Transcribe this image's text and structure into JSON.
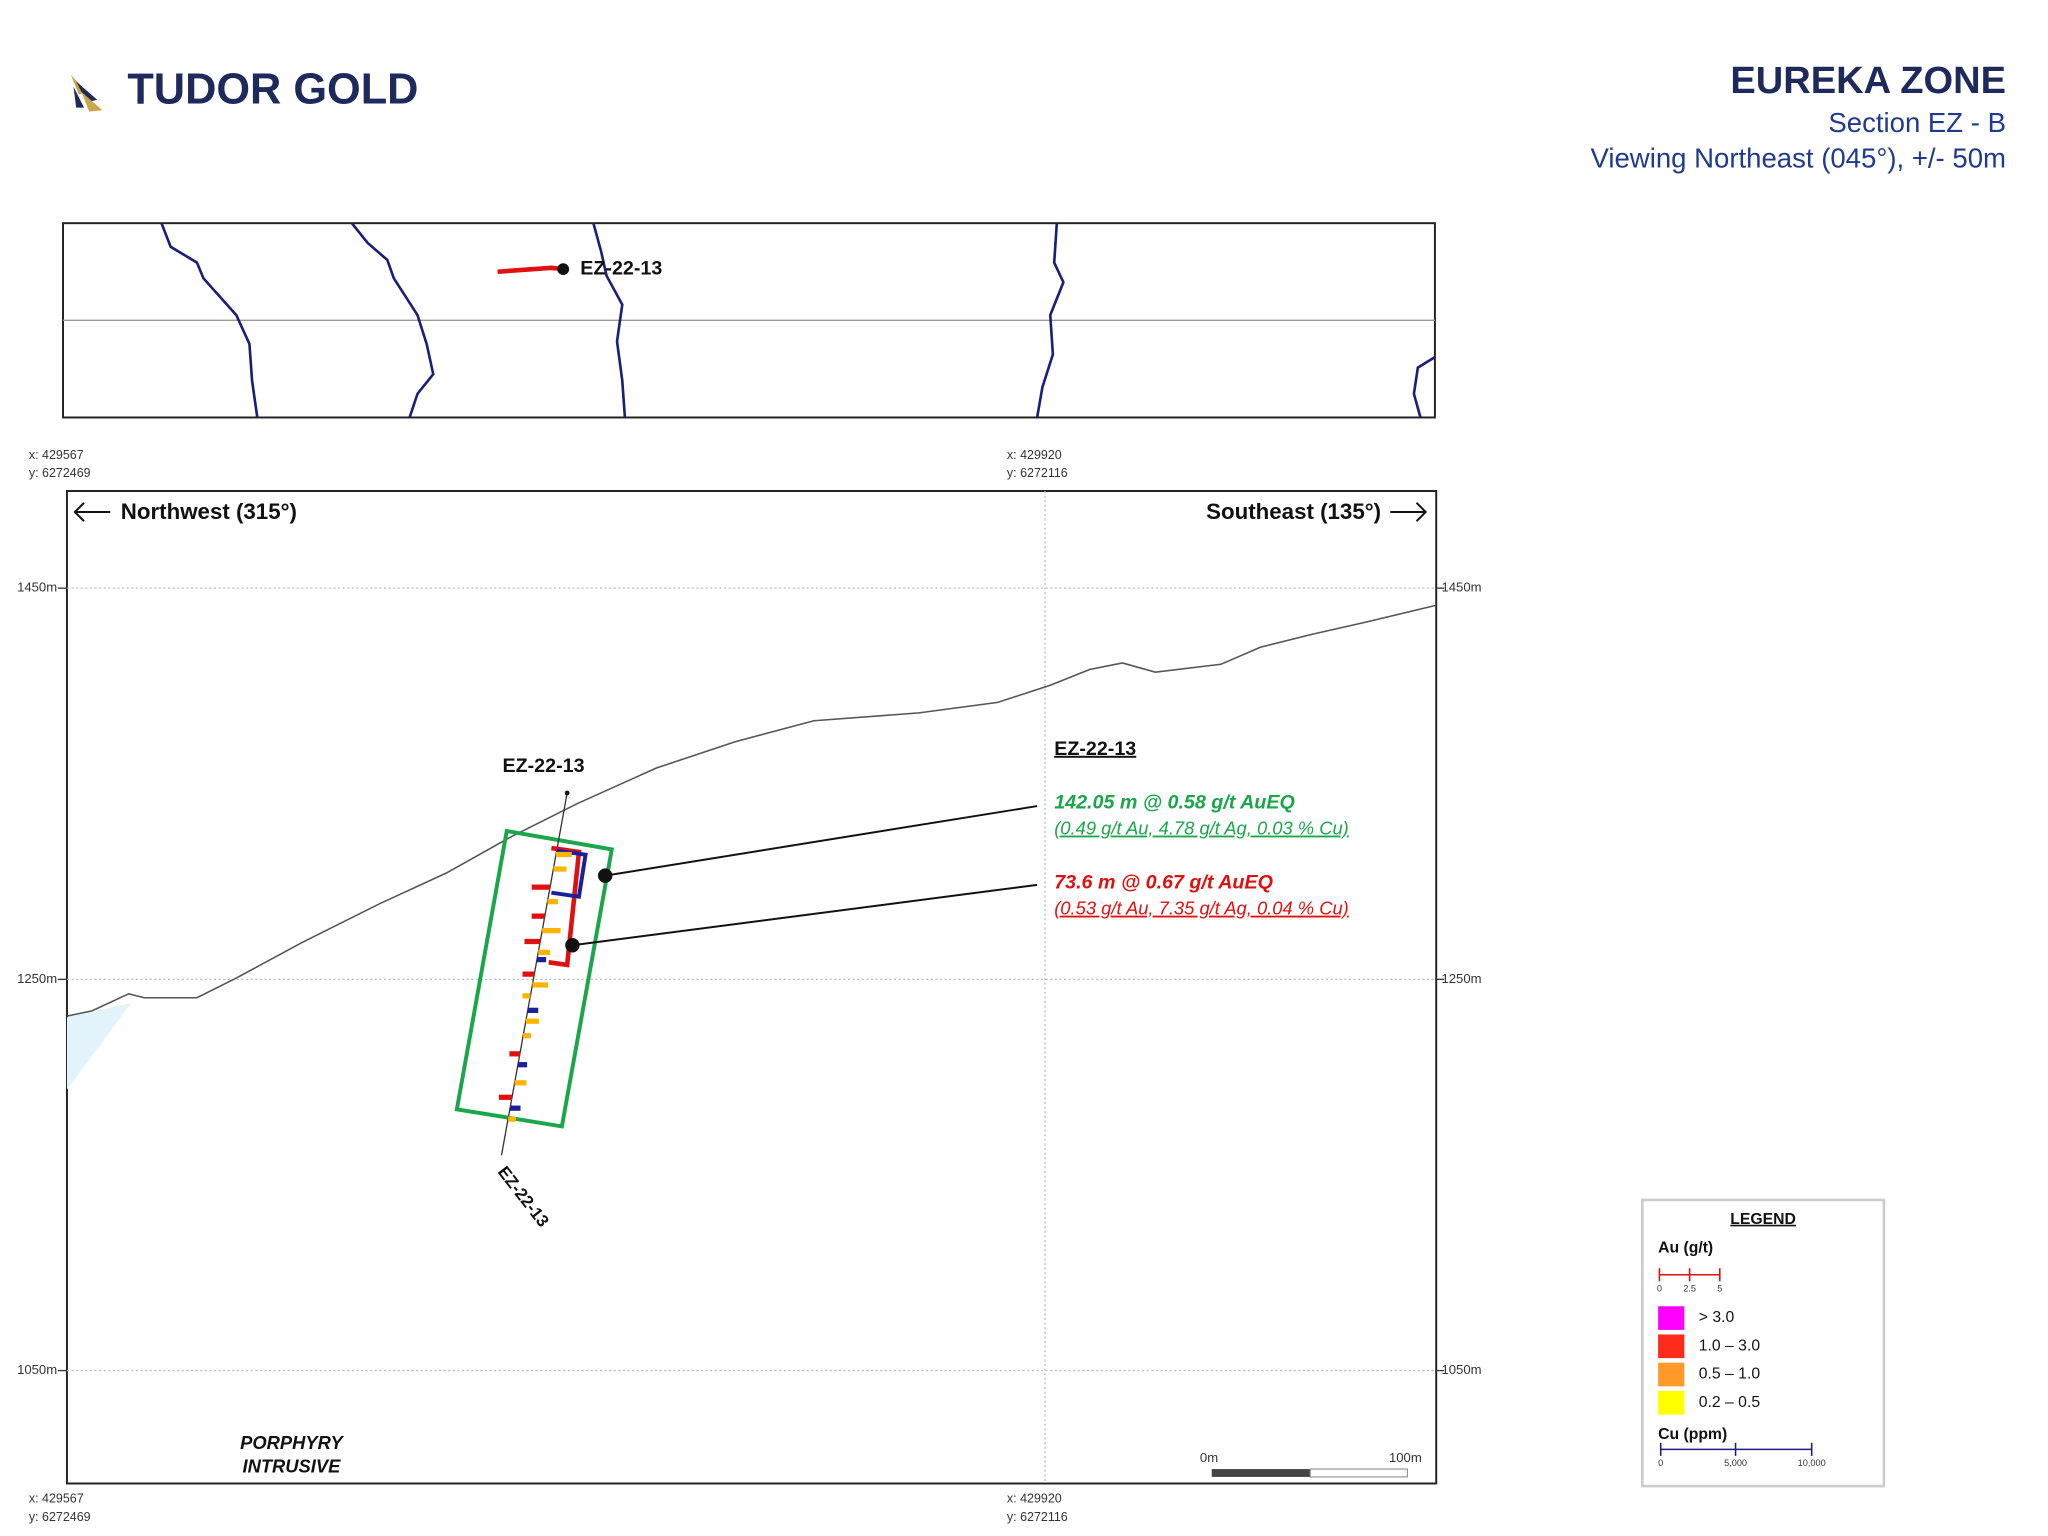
{
  "header": {
    "logo": "TUDOR GOLD",
    "title": "EUREKA ZONE",
    "subtitle": "Section EZ - B",
    "view": "Viewing Northeast (045°), +/- 50m"
  },
  "plan_map": {
    "drillhole": "EZ-22-13"
  },
  "section": {
    "corners": [
      {
        "x": "x: 429567",
        "y": "y: 6272469"
      },
      {
        "x": "x: 429920",
        "y": "y: 6272116"
      },
      {
        "x": "x: 429567",
        "y": "y: 6272469"
      },
      {
        "x": "x: 429920",
        "y": "y: 6272116"
      }
    ],
    "directions": [
      "Northwest (315°)",
      "Southeast (135°)"
    ],
    "elevations": [
      "1450m",
      "1250m",
      "1050m"
    ],
    "drillhole_labels": [
      "EZ-22-13",
      "EZ-22-13"
    ],
    "rock_unit": [
      "PORPHYRY",
      "INTRUSIVE"
    ],
    "scale": [
      "0m",
      "100m"
    ]
  },
  "intercepts": {
    "hole": "EZ-22-13",
    "items": [
      {
        "main": "142.05 m @ 0.58 g/t AuEQ",
        "detail": "(0.49 g/t Au, 4.78 g/t Ag, 0.03 % Cu)",
        "color": "#1aa64a"
      },
      {
        "main": "73.6 m @ 0.67 g/t AuEQ",
        "detail": "(0.53 g/t Au, 7.35 g/t Ag, 0.04 % Cu)",
        "color": "#e01010"
      }
    ]
  },
  "legend": {
    "title": "LEGEND",
    "au_title": "Au (g/t)",
    "au_ticks": [
      "0",
      "2.5",
      "5"
    ],
    "classes": [
      {
        "label": "> 3.0",
        "color": "#ff00ff"
      },
      {
        "label": "1.0 – 3.0",
        "color": "#ff2a1a"
      },
      {
        "label": "0.5 – 1.0",
        "color": "#ff9a2a"
      },
      {
        "label": "0.2 – 0.5",
        "color": "#ffff00"
      }
    ],
    "cu_title": "Cu (ppm)",
    "cu_ticks": [
      "0",
      "5,000",
      "10,000"
    ]
  }
}
